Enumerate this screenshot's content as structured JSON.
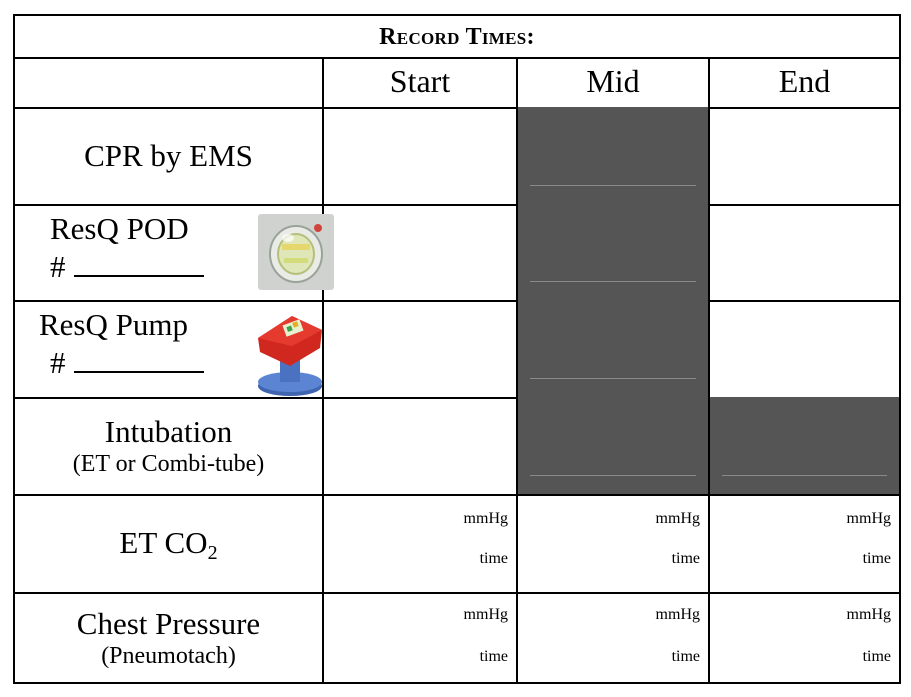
{
  "title": "Record Times:",
  "headers": [
    "Start",
    "Mid",
    "End"
  ],
  "rows": {
    "cpr": {
      "label": "CPR by EMS"
    },
    "pod": {
      "label": "ResQ POD",
      "hash": "#"
    },
    "pump": {
      "label": "ResQ Pump",
      "hash": "#"
    },
    "intubation": {
      "label": "Intubation",
      "sublabel": "(ET or Combi-tube)"
    },
    "etco2": {
      "label_main": "ET CO",
      "label_sub": "2",
      "unit1": "mmHg",
      "unit2": "time"
    },
    "chest": {
      "label": "Chest Pressure",
      "sublabel": "(Pneumotach)",
      "unit1": "mmHg",
      "unit2": "time"
    }
  },
  "colors": {
    "shaded": "#555555",
    "border": "#000000"
  },
  "icons": {
    "pod": "resq-pod-device-icon",
    "pump": "resq-pump-device-icon"
  }
}
